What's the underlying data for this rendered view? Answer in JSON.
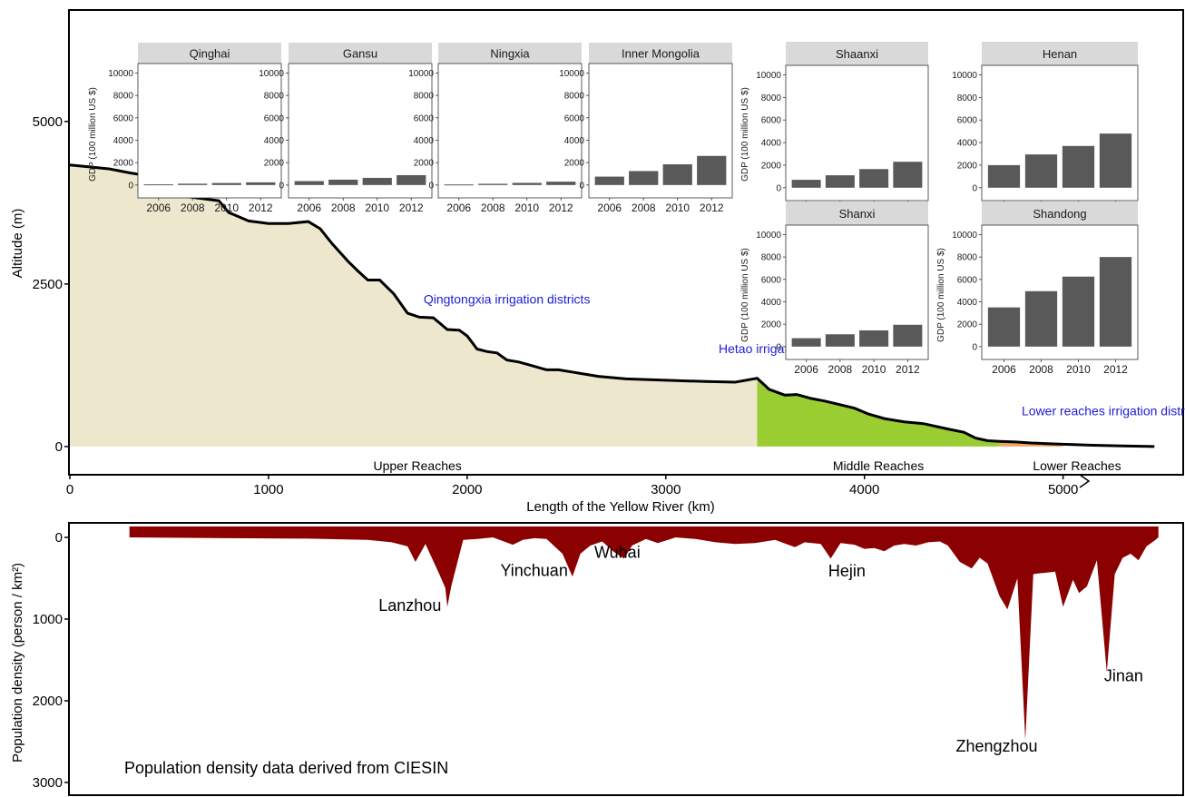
{
  "chart_data": [
    {
      "type": "area",
      "xlabel": "Length of the Yellow River (km)",
      "ylabel": "Altitude (m)",
      "xlim": [
        0,
        5600
      ],
      "ylim": [
        -420,
        6700
      ],
      "x_ticks": [
        "0",
        "1000",
        "2000",
        "3000",
        "4000",
        "5000"
      ],
      "y_ticks": [
        "0",
        "2500",
        "5000"
      ],
      "series": [
        {
          "fill_color": "#ede7cd",
          "points": [
            [
              0,
              4330
            ],
            [
              100,
              4300
            ],
            [
              200,
              4270
            ],
            [
              300,
              4210
            ],
            [
              400,
              4160
            ],
            [
              500,
              3980
            ],
            [
              600,
              3840
            ],
            [
              700,
              3800
            ],
            [
              750,
              3780
            ],
            [
              800,
              3600
            ],
            [
              900,
              3470
            ],
            [
              1000,
              3430
            ],
            [
              1100,
              3430
            ],
            [
              1200,
              3460
            ],
            [
              1260,
              3350
            ],
            [
              1320,
              3120
            ],
            [
              1400,
              2850
            ],
            [
              1450,
              2700
            ],
            [
              1500,
              2560
            ],
            [
              1560,
              2560
            ],
            [
              1630,
              2350
            ],
            [
              1700,
              2050
            ],
            [
              1760,
              1990
            ],
            [
              1830,
              1980
            ],
            [
              1900,
              1800
            ],
            [
              1960,
              1790
            ],
            [
              2000,
              1700
            ],
            [
              2050,
              1500
            ],
            [
              2100,
              1460
            ],
            [
              2150,
              1440
            ],
            [
              2200,
              1330
            ],
            [
              2260,
              1300
            ],
            [
              2320,
              1250
            ],
            [
              2400,
              1180
            ],
            [
              2460,
              1180
            ],
            [
              2560,
              1130
            ],
            [
              2660,
              1080
            ],
            [
              2800,
              1040
            ],
            [
              3000,
              1020
            ],
            [
              3200,
              1000
            ],
            [
              3350,
              990
            ],
            [
              3460,
              1050
            ]
          ]
        },
        {
          "fill_color": "#9acd32",
          "points": [
            [
              3460,
              1050
            ],
            [
              3520,
              880
            ],
            [
              3600,
              790
            ],
            [
              3660,
              800
            ],
            [
              3730,
              740
            ],
            [
              3800,
              700
            ],
            [
              3870,
              650
            ],
            [
              3950,
              590
            ],
            [
              4020,
              500
            ],
            [
              4100,
              430
            ],
            [
              4200,
              380
            ],
            [
              4300,
              350
            ],
            [
              4420,
              270
            ],
            [
              4500,
              220
            ],
            [
              4560,
              130
            ],
            [
              4620,
              90
            ],
            [
              4680,
              80
            ]
          ]
        },
        {
          "fill_color": "#f4a460",
          "points": [
            [
              4680,
              80
            ],
            [
              4760,
              70
            ],
            [
              4840,
              55
            ],
            [
              4920,
              45
            ],
            [
              5000,
              35
            ]
          ]
        },
        {
          "fill_color": "#ffffff",
          "points": [
            [
              5000,
              35
            ],
            [
              5150,
              20
            ],
            [
              5300,
              10
            ],
            [
              5460,
              0
            ]
          ]
        }
      ],
      "annotations": [
        {
          "text": "Qingtongxia irrigation districts",
          "x": 2200,
          "y": 2200,
          "color": "#1c1cd6"
        },
        {
          "text": "Hetao irrigation districts",
          "x": 3600,
          "y": 1440,
          "color": "#1c1cd6"
        },
        {
          "text": "Lower reaches irrigation districts",
          "x": 5250,
          "y": 480,
          "color": "#1c1cd6"
        }
      ],
      "reach_labels": [
        {
          "text": "Upper Reaches",
          "x": 1750
        },
        {
          "text": "Middle Reaches",
          "x": 4070
        },
        {
          "text": "Lower Reaches",
          "x": 5070
        }
      ]
    },
    {
      "type": "bar",
      "ylabel": "GDP (100 million US $)",
      "ylim": [
        0,
        10000
      ],
      "y_ticks": [
        0,
        2000,
        4000,
        6000,
        8000,
        10000
      ],
      "categories": [
        "2006",
        "2008",
        "2010",
        "2012"
      ],
      "panels": [
        {
          "name": "Qinghai",
          "values": [
            60,
            120,
            180,
            240
          ]
        },
        {
          "name": "Gansu",
          "values": [
            350,
            480,
            640,
            880
          ]
        },
        {
          "name": "Ningxia",
          "values": [
            50,
            110,
            190,
            300
          ]
        },
        {
          "name": "Inner Mongolia",
          "values": [
            750,
            1250,
            1850,
            2600
          ]
        },
        {
          "name": "Shaanxi",
          "values": [
            700,
            1100,
            1650,
            2300
          ]
        },
        {
          "name": "Henan",
          "values": [
            2000,
            2950,
            3700,
            4800
          ]
        },
        {
          "name": "Shanxi",
          "values": [
            750,
            1100,
            1450,
            1950
          ]
        },
        {
          "name": "Shandong",
          "values": [
            3500,
            4950,
            6250,
            8000
          ]
        }
      ]
    },
    {
      "type": "area",
      "ylabel": "Population density (person / km²)",
      "ylim": [
        0,
        3200
      ],
      "y_ticks": [
        "0",
        "1000",
        "2000",
        "3000"
      ],
      "fill_color": "#8b0000",
      "note": "Population density data derived from CIESIN",
      "points": [
        [
          300,
          0
        ],
        [
          800,
          10
        ],
        [
          1200,
          15
        ],
        [
          1500,
          30
        ],
        [
          1620,
          60
        ],
        [
          1700,
          110
        ],
        [
          1740,
          300
        ],
        [
          1790,
          80
        ],
        [
          1860,
          450
        ],
        [
          1890,
          620
        ],
        [
          1900,
          850
        ],
        [
          1920,
          600
        ],
        [
          1980,
          30
        ],
        [
          2050,
          20
        ],
        [
          2130,
          0
        ],
        [
          2230,
          90
        ],
        [
          2280,
          30
        ],
        [
          2340,
          10
        ],
        [
          2400,
          20
        ],
        [
          2480,
          200
        ],
        [
          2530,
          480
        ],
        [
          2570,
          200
        ],
        [
          2620,
          100
        ],
        [
          2680,
          50
        ],
        [
          2740,
          180
        ],
        [
          2790,
          260
        ],
        [
          2830,
          100
        ],
        [
          2900,
          20
        ],
        [
          2960,
          70
        ],
        [
          3050,
          0
        ],
        [
          3150,
          20
        ],
        [
          3250,
          60
        ],
        [
          3350,
          80
        ],
        [
          3450,
          70
        ],
        [
          3550,
          30
        ],
        [
          3650,
          120
        ],
        [
          3700,
          60
        ],
        [
          3780,
          80
        ],
        [
          3830,
          260
        ],
        [
          3880,
          70
        ],
        [
          3950,
          90
        ],
        [
          4000,
          140
        ],
        [
          4050,
          130
        ],
        [
          4100,
          170
        ],
        [
          4150,
          100
        ],
        [
          4200,
          80
        ],
        [
          4260,
          100
        ],
        [
          4320,
          60
        ],
        [
          4380,
          50
        ],
        [
          4420,
          100
        ],
        [
          4480,
          300
        ],
        [
          4540,
          380
        ],
        [
          4580,
          250
        ],
        [
          4620,
          320
        ],
        [
          4680,
          720
        ],
        [
          4720,
          880
        ],
        [
          4770,
          500
        ],
        [
          4810,
          2480
        ],
        [
          4850,
          450
        ],
        [
          4880,
          440
        ],
        [
          4920,
          430
        ],
        [
          4960,
          420
        ],
        [
          5000,
          850
        ],
        [
          5050,
          520
        ],
        [
          5080,
          680
        ],
        [
          5120,
          600
        ],
        [
          5170,
          280
        ],
        [
          5220,
          1650
        ],
        [
          5260,
          450
        ],
        [
          5300,
          250
        ],
        [
          5340,
          200
        ],
        [
          5380,
          280
        ],
        [
          5420,
          110
        ],
        [
          5460,
          40
        ],
        [
          5480,
          0
        ]
      ],
      "city_labels": [
        {
          "text": "Lanzhou",
          "x": 1712,
          "y": 900
        },
        {
          "text": "Yinchuan",
          "x": 2337,
          "y": 470
        },
        {
          "text": "Wuhai",
          "x": 2756,
          "y": 250
        },
        {
          "text": "Hejin",
          "x": 3912,
          "y": 480
        },
        {
          "text": "Zhengzhou",
          "x": 4666,
          "y": 2620
        },
        {
          "text": "Jinan",
          "x": 5305,
          "y": 1760
        }
      ]
    }
  ]
}
